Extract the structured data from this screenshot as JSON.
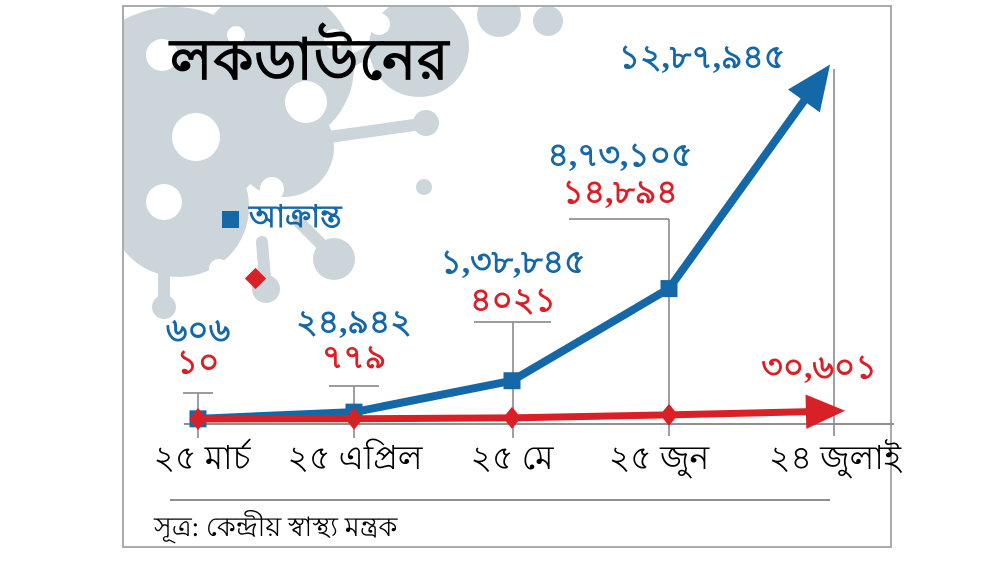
{
  "title": "লকডাউনের",
  "source": "সূত্র: কেন্দ্রীয় স্বাস্থ্য মন্ত্রক",
  "legend": {
    "infected_label": "আক্রান্ত"
  },
  "colors": {
    "infected": "#1568a8",
    "deaths": "#da2027",
    "virus": "#cbd5da",
    "axis": "#8f8f8f"
  },
  "chart_data": {
    "type": "line",
    "title": "লকডাউনের",
    "source": "সূত্র: কেন্দ্রীয় স্বাস্থ্য মন্ত্রক",
    "categories": [
      "২৫ মার্চ",
      "২৫ এপ্রিল",
      "২৫ মে",
      "২৫ জুন",
      "২৪ জুলাই"
    ],
    "series": [
      {
        "name": "আক্রান্ত",
        "color": "#1568a8",
        "marker": "square",
        "line_end": "arrow-up-right",
        "values": [
          606,
          24942,
          138845,
          473105,
          1287945
        ],
        "labels": [
          "৬০৬",
          "২৪,৯৪২",
          "১,৩৮,৮৪৫",
          "৪,৭৩,১০৫",
          "১২,৮৭,৯৪৫"
        ]
      },
      {
        "color": "#da2027",
        "marker": "diamond",
        "line_end": "arrow-right",
        "values": [
          10,
          779,
          4021,
          14894,
          30601
        ],
        "labels": [
          "১০",
          "৭৭৯",
          "৪০২১",
          "১৪,৮৯৪",
          "৩০,৬০১"
        ]
      }
    ],
    "ylim": [
      0,
      1287945
    ],
    "grid": false,
    "legend_position": "upper-left"
  }
}
